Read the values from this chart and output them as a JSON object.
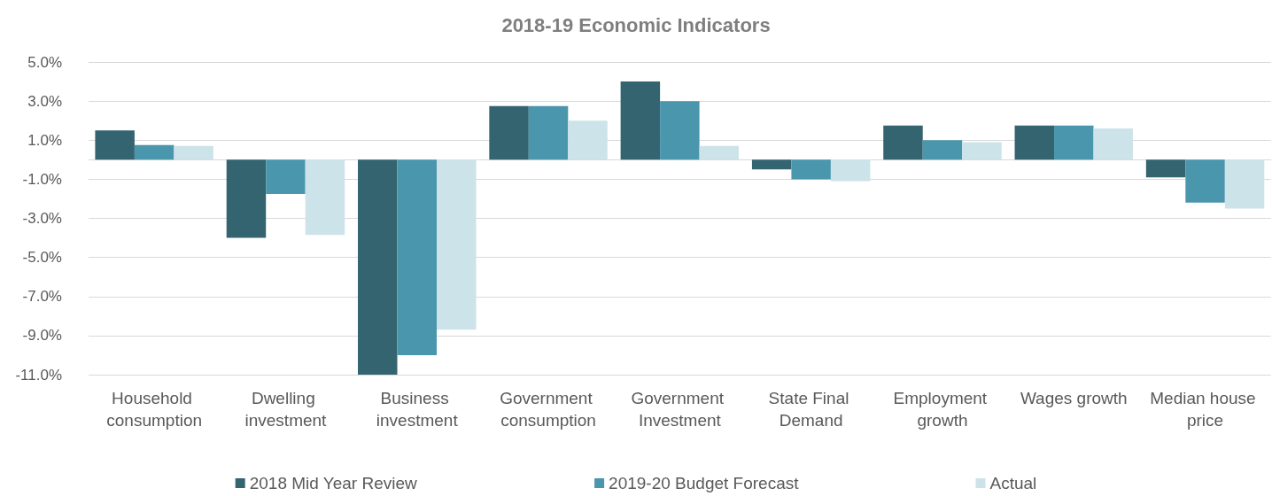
{
  "chart_data": {
    "type": "bar",
    "title": "2018-19 Economic Indicators",
    "categories": [
      "Household consumption",
      "Dwelling investment",
      "Business investment",
      "Government consumption",
      "Government Investment",
      "State Final Demand",
      "Employment growth",
      "Wages growth",
      "Median house price"
    ],
    "series": [
      {
        "name": "2018 Mid Year Review",
        "color": "#336470",
        "values": [
          1.5,
          -4.0,
          -11.0,
          2.75,
          4.0,
          -0.5,
          1.75,
          1.75,
          -0.9
        ]
      },
      {
        "name": "2019-20 Budget Forecast",
        "color": "#4a96ad",
        "values": [
          0.75,
          -1.75,
          -10.0,
          2.75,
          3.0,
          -1.0,
          1.0,
          1.75,
          -2.2
        ]
      },
      {
        "name": "Actual",
        "color": "#cde3ea",
        "values": [
          0.7,
          -3.85,
          -8.7,
          2.0,
          0.7,
          -1.1,
          0.9,
          1.6,
          -2.5
        ]
      }
    ],
    "ylim": [
      -11,
      5
    ],
    "yticks": [
      {
        "value": -11,
        "label": "-11.0%"
      },
      {
        "value": -9,
        "label": "-9.0%"
      },
      {
        "value": -7,
        "label": "-7.0%"
      },
      {
        "value": -5,
        "label": "-5.0%"
      },
      {
        "value": -3,
        "label": "-3.0%"
      },
      {
        "value": -1,
        "label": "-1.0%"
      },
      {
        "value": 1,
        "label": "1.0%"
      },
      {
        "value": 3,
        "label": "3.0%"
      },
      {
        "value": 5,
        "label": "5.0%"
      }
    ],
    "grid": "y",
    "legend": "bottom"
  }
}
